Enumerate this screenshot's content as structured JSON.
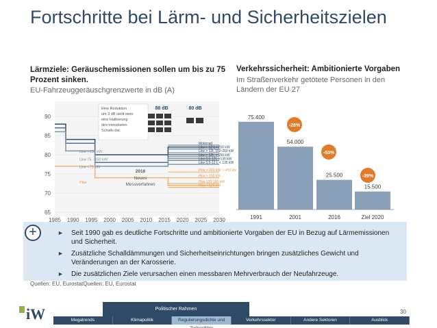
{
  "title": "Fortschritte bei Lärm- und Sicherheitszielen",
  "left": {
    "heading": "Lärmziele: Geräuschemissionen sollen um bis zu 75 Prozent sinken.",
    "subheading": "EU-Fahrzeuggeräuschgrenzwerte in dB (A)",
    "note": "Eine Reduktion um 3 dB stellt stets eine Halbierung des messbaren Schalls dar.",
    "db_88": "88 dB",
    "db_80": "80 dB",
    "label_2016": "2016",
    "label_neues": "Neues",
    "label_mess": "Messverfahren",
    "left_labels": [
      "Lkw >150 kW",
      "Lkw 75 - 150 kW",
      "Lkw <75 kW",
      "Pkw"
    ],
    "right_labels": [
      "Motorrad",
      "Lkw > 12 t, >250 kW",
      "Lkw > 12t, 150-250 kW",
      "Lkw > 12t, < 150 kW",
      "Lkw 3,5-12t, >135 kW",
      "Lkw 3,5-12 t, < 135 kW",
      "Pkw > 160 kW, > 450 kw",
      "Pkw > 160 kW",
      "Pkw 120-160 kW",
      "Pkw < 120 kW"
    ]
  },
  "right": {
    "heading": "Verkehrssicherheit: Ambitionierte Vorgaben",
    "subheading": "Im Straßenverkehr getötete Personen in den Ländern der EU 27"
  },
  "chart_data": [
    {
      "type": "line",
      "title": "EU-Fahrzeuggeräuschgrenzwerte in dB (A)",
      "xlabel": "",
      "ylabel": "dB (A)",
      "xlim": [
        1985,
        2030
      ],
      "ylim": [
        65,
        90
      ],
      "xticks": [
        1985,
        1990,
        1995,
        2000,
        2005,
        2010,
        2015,
        2020,
        2025,
        2030
      ],
      "yticks": [
        65,
        70,
        75,
        80,
        85,
        90
      ],
      "series": [
        {
          "name": "Lkw >150 kW",
          "points": [
            [
              1985,
              88
            ],
            [
              1988,
              88
            ],
            [
              1988,
              84
            ],
            [
              1996,
              84
            ],
            [
              1996,
              80
            ],
            [
              2016,
              80
            ],
            [
              2016,
              82
            ],
            [
              2030,
              82
            ]
          ]
        },
        {
          "name": "Lkw 75 - 150 kW",
          "points": [
            [
              1985,
              87
            ],
            [
              1988,
              87
            ],
            [
              1988,
              83
            ],
            [
              1996,
              83
            ],
            [
              1996,
              78
            ],
            [
              2016,
              78
            ],
            [
              2016,
              80
            ],
            [
              2030,
              80
            ]
          ]
        },
        {
          "name": "Lkw <75 kW",
          "points": [
            [
              1985,
              86
            ],
            [
              1988,
              86
            ],
            [
              1988,
              81
            ],
            [
              1996,
              81
            ],
            [
              1996,
              77
            ],
            [
              2016,
              77
            ],
            [
              2016,
              79
            ],
            [
              2030,
              79
            ]
          ]
        },
        {
          "name": "Pkw",
          "points": [
            [
              1985,
              77
            ],
            [
              1988,
              77
            ],
            [
              1988,
              77
            ],
            [
              1996,
              77
            ],
            [
              1996,
              74
            ],
            [
              2016,
              74
            ],
            [
              2016,
              72
            ],
            [
              2030,
              72
            ]
          ]
        }
      ]
    },
    {
      "type": "bar",
      "title": "Im Straßenverkehr getötete Personen in den Ländern der EU 27",
      "categories": [
        "1991",
        "2001",
        "2016",
        "Ziel 2020"
      ],
      "values": [
        75400,
        54000,
        25500,
        15500
      ],
      "value_labels": [
        "75.400",
        "54.000",
        "25.500",
        "15.500"
      ],
      "changes": [
        "-28%",
        "-53%",
        "-39%"
      ],
      "ylim": [
        0,
        80000
      ]
    }
  ],
  "bullets": [
    "Seit 1990 gab es deutliche Fortschritte und ambitionierte Vorgaben der EU in Bezug auf Lärmemissionen und Sicherheit.",
    "Zusätzliche Schalldämmungen und Sicherheitseinrichtungen bringen zusätzliches Gewicht und Veränderungen an der Karosserie.",
    "Die zusätzlichen Ziele verursachen einen messbaren Mehrverbrauch der Neufahrzeuge."
  ],
  "source": "Quellen: EU, EurostatQuellen: EU, Eurostat",
  "page_number": "30",
  "logo": "iW",
  "political_tab": "Politischer Rahmen",
  "nav": [
    "Megatrends",
    "Klimapolitik",
    "Regulierungsdichte und Zielkonflikte",
    "Verkehrssektor",
    "Andere Sektoren",
    "Ausblick"
  ],
  "colors": {
    "primary": "#2e4a66",
    "bar": "#8aa0b8",
    "badge": "#e07b2a",
    "pkw": "#f0b473",
    "light": "#dbe7f2"
  }
}
